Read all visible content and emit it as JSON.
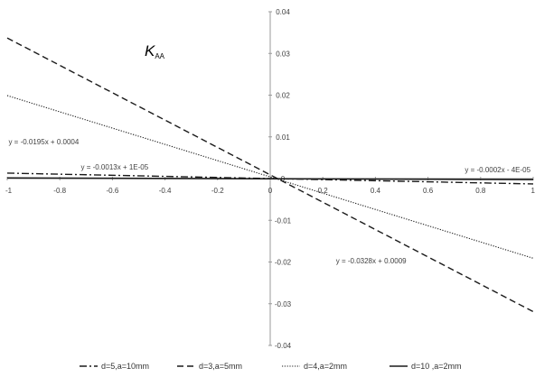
{
  "chart_data": {
    "type": "line",
    "title": "K",
    "title_subscript": "AA",
    "xlim": [
      -1,
      1
    ],
    "ylim": [
      -0.04,
      0.04
    ],
    "x_ticks": [
      "-1",
      "-0.8",
      "-0.6",
      "-0.4",
      "-0.2",
      "0",
      "0.2",
      "0.4",
      "0.6",
      "0.8",
      "1"
    ],
    "y_ticks": [
      "0.04",
      "0.03",
      "0.02",
      "0.01",
      "0",
      "-0.01",
      "-0.02",
      "-0.03",
      "-0.04"
    ],
    "grid": false,
    "legend_position": "bottom",
    "series": [
      {
        "name": "d=5,a=10mm",
        "slope": -0.0013,
        "intercept": 1e-05,
        "style": "dash-dot",
        "equation": "y = -0.0013x + 1E-05"
      },
      {
        "name": "d=3,a=5mm",
        "slope": -0.0328,
        "intercept": 0.0009,
        "style": "dashed",
        "equation": "y = -0.0328x + 0.0009"
      },
      {
        "name": "d=4,a=2mm",
        "slope": -0.0195,
        "intercept": 0.0004,
        "style": "dotted",
        "equation": "y = -0.0195x + 0.0004"
      },
      {
        "name": "d=10 ,a=2mm",
        "slope": -0.0002,
        "intercept": -4e-05,
        "style": "solid",
        "equation": "y = -0.0002x - 4E-05"
      }
    ],
    "colors": {
      "axis": "#999999",
      "line": "#1a1a1a",
      "text": "#404040"
    }
  }
}
